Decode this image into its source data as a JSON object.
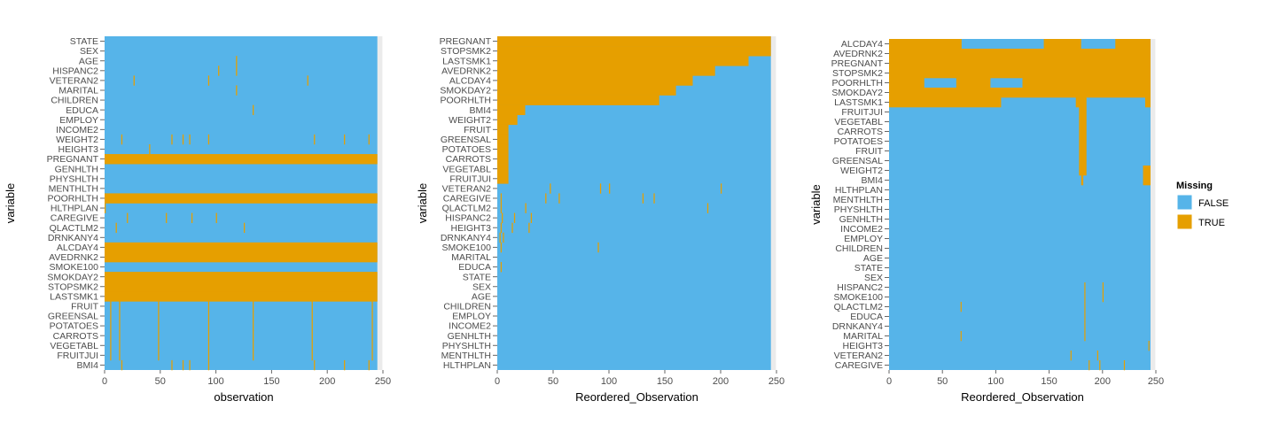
{
  "colors": {
    "missing_false": "#56B4E9",
    "missing_true": "#E69F00",
    "panel_bg": "#EBEBEB",
    "grid": "#ffffff"
  },
  "legend": {
    "title": "Missing",
    "items": [
      {
        "label": "FALSE",
        "color": "#56B4E9"
      },
      {
        "label": "TRUE",
        "color": "#E69F00"
      }
    ]
  },
  "chart_data": [
    {
      "type": "heatmap",
      "xlabel": "observation",
      "ylabel": "variable",
      "xlim": [
        0,
        250
      ],
      "xticks": [
        "0",
        "50",
        "100",
        "150",
        "200",
        "250"
      ],
      "n_obs": 245,
      "variables": [
        "STATE",
        "SEX",
        "AGE",
        "HISPANC2",
        "VETERAN2",
        "MARITAL",
        "CHILDREN",
        "EDUCA",
        "EMPLOY",
        "INCOME2",
        "WEIGHT2",
        "HEIGHT3",
        "PREGNANT",
        "GENHLTH",
        "PHYSHLTH",
        "MENTHLTH",
        "POORHLTH",
        "HLTHPLAN",
        "CAREGIVE",
        "QLACTLM2",
        "DRNKANY4",
        "ALCDAY4",
        "AVEDRNK2",
        "SMOKE100",
        "SMOKDAY2",
        "STOPSMK2",
        "LASTSMK1",
        "FRUIT",
        "GREENSAL",
        "POTATOES",
        "CARROTS",
        "VEGETABL",
        "FRUITJUI",
        "BMI4"
      ],
      "missing": {
        "AGE": [
          [
            118,
            119
          ]
        ],
        "HISPANC2": [
          [
            102,
            103
          ],
          [
            118,
            119
          ]
        ],
        "VETERAN2": [
          [
            26,
            27
          ],
          [
            93,
            94
          ],
          [
            182,
            183
          ]
        ],
        "MARITAL": [
          [
            118,
            119
          ]
        ],
        "EDUCA": [
          [
            133,
            134
          ]
        ],
        "WEIGHT2": [
          [
            15,
            16
          ],
          [
            60,
            61
          ],
          [
            70,
            71
          ],
          [
            76,
            77
          ],
          [
            93,
            94
          ],
          [
            188,
            189
          ],
          [
            215,
            216
          ],
          [
            237,
            238
          ]
        ],
        "HEIGHT3": [
          [
            40,
            41
          ]
        ],
        "PREGNANT": [
          [
            0,
            245
          ]
        ],
        "POORHLTH": [
          [
            0,
            245
          ]
        ],
        "HLTHPLAN": [
          [
            0,
            1
          ]
        ],
        "CAREGIVE": [
          [
            20,
            21
          ],
          [
            55,
            56
          ],
          [
            78,
            79
          ],
          [
            100,
            101
          ]
        ],
        "QLACTLM2": [
          [
            10,
            11
          ],
          [
            125,
            126
          ]
        ],
        "ALCDAY4": [
          [
            0,
            245
          ]
        ],
        "AVEDRNK2": [
          [
            0,
            245
          ]
        ],
        "SMOKDAY2": [
          [
            0,
            245
          ]
        ],
        "STOPSMK2": [
          [
            0,
            245
          ]
        ],
        "LASTSMK1": [
          [
            0,
            245
          ]
        ],
        "FRUIT": [
          [
            5,
            6
          ],
          [
            13,
            14
          ],
          [
            48,
            49
          ],
          [
            93,
            94
          ],
          [
            133,
            134
          ],
          [
            186,
            187
          ],
          [
            240,
            241
          ]
        ],
        "GREENSAL": [
          [
            5,
            6
          ],
          [
            13,
            14
          ],
          [
            48,
            49
          ],
          [
            93,
            94
          ],
          [
            133,
            134
          ],
          [
            186,
            187
          ],
          [
            240,
            241
          ]
        ],
        "POTATOES": [
          [
            5,
            6
          ],
          [
            13,
            14
          ],
          [
            48,
            49
          ],
          [
            93,
            94
          ],
          [
            133,
            134
          ],
          [
            186,
            187
          ],
          [
            240,
            241
          ]
        ],
        "CARROTS": [
          [
            5,
            6
          ],
          [
            13,
            14
          ],
          [
            48,
            49
          ],
          [
            93,
            94
          ],
          [
            133,
            134
          ],
          [
            186,
            187
          ],
          [
            240,
            241
          ]
        ],
        "VEGETABL": [
          [
            5,
            6
          ],
          [
            13,
            14
          ],
          [
            48,
            49
          ],
          [
            93,
            94
          ],
          [
            133,
            134
          ],
          [
            186,
            187
          ],
          [
            240,
            241
          ]
        ],
        "FRUITJUI": [
          [
            5,
            6
          ],
          [
            13,
            14
          ],
          [
            48,
            49
          ],
          [
            93,
            94
          ],
          [
            133,
            134
          ],
          [
            186,
            187
          ],
          [
            240,
            241
          ]
        ],
        "BMI4": [
          [
            15,
            16
          ],
          [
            60,
            61
          ],
          [
            70,
            71
          ],
          [
            76,
            77
          ],
          [
            93,
            94
          ],
          [
            188,
            189
          ],
          [
            215,
            216
          ],
          [
            237,
            238
          ]
        ]
      }
    },
    {
      "type": "heatmap",
      "xlabel": "Reordered_Observation",
      "ylabel": "variable",
      "xlim": [
        0,
        250
      ],
      "xticks": [
        "0",
        "50",
        "100",
        "150",
        "200",
        "250"
      ],
      "n_obs": 245,
      "variables": [
        "PREGNANT",
        "STOPSMK2",
        "LASTSMK1",
        "AVEDRNK2",
        "ALCDAY4",
        "SMOKDAY2",
        "POORHLTH",
        "BMI4",
        "WEIGHT2",
        "FRUIT",
        "GREENSAL",
        "POTATOES",
        "CARROTS",
        "VEGETABL",
        "FRUITJUI",
        "VETERAN2",
        "CAREGIVE",
        "QLACTLM2",
        "HISPANC2",
        "HEIGHT3",
        "DRNKANY4",
        "SMOKE100",
        "MARITAL",
        "EDUCA",
        "STATE",
        "SEX",
        "AGE",
        "CHILDREN",
        "EMPLOY",
        "INCOME2",
        "GENHLTH",
        "PHYSHLTH",
        "MENTHLTH",
        "HLTHPLAN"
      ],
      "missing": {
        "PREGNANT": [
          [
            0,
            245
          ]
        ],
        "STOPSMK2": [
          [
            0,
            245
          ]
        ],
        "LASTSMK1": [
          [
            0,
            225
          ]
        ],
        "AVEDRNK2": [
          [
            0,
            195
          ]
        ],
        "ALCDAY4": [
          [
            0,
            175
          ]
        ],
        "SMOKDAY2": [
          [
            0,
            160
          ]
        ],
        "POORHLTH": [
          [
            0,
            145
          ]
        ],
        "BMI4": [
          [
            0,
            25
          ]
        ],
        "WEIGHT2": [
          [
            0,
            18
          ]
        ],
        "FRUIT": [
          [
            0,
            10
          ]
        ],
        "GREENSAL": [
          [
            0,
            10
          ]
        ],
        "POTATOES": [
          [
            0,
            10
          ]
        ],
        "CARROTS": [
          [
            0,
            10
          ]
        ],
        "VEGETABL": [
          [
            0,
            10
          ]
        ],
        "FRUITJUI": [
          [
            0,
            10
          ]
        ],
        "VETERAN2": [
          [
            47,
            48
          ],
          [
            92,
            93
          ],
          [
            100,
            101
          ],
          [
            200,
            201
          ]
        ],
        "CAREGIVE": [
          [
            3,
            4
          ],
          [
            43,
            44
          ],
          [
            55,
            56
          ],
          [
            130,
            131
          ],
          [
            140,
            141
          ]
        ],
        "QLACTLM2": [
          [
            3,
            4
          ],
          [
            25,
            26
          ],
          [
            188,
            189
          ]
        ],
        "HISPANC2": [
          [
            4,
            5
          ],
          [
            15,
            16
          ],
          [
            30,
            31
          ]
        ],
        "HEIGHT3": [
          [
            3,
            4
          ],
          [
            13,
            14
          ],
          [
            28,
            29
          ]
        ],
        "DRNKANY4": [
          [
            2,
            3
          ],
          [
            5,
            6
          ]
        ],
        "SMOKE100": [
          [
            3,
            4
          ],
          [
            90,
            91
          ]
        ],
        "EDUCA": [
          [
            3,
            4
          ]
        ]
      }
    },
    {
      "type": "heatmap",
      "xlabel": "Reordered_Observation",
      "ylabel": "variable",
      "xlim": [
        0,
        250
      ],
      "xticks": [
        "0",
        "50",
        "100",
        "150",
        "200",
        "250"
      ],
      "n_obs": 245,
      "variables": [
        "ALCDAY4",
        "AVEDRNK2",
        "PREGNANT",
        "STOPSMK2",
        "POORHLTH",
        "SMOKDAY2",
        "LASTSMK1",
        "FRUITJUI",
        "VEGETABL",
        "CARROTS",
        "POTATOES",
        "FRUIT",
        "GREENSAL",
        "WEIGHT2",
        "BMI4",
        "HLTHPLAN",
        "MENTHLTH",
        "PHYSHLTH",
        "GENHLTH",
        "INCOME2",
        "EMPLOY",
        "CHILDREN",
        "AGE",
        "STATE",
        "SEX",
        "HISPANC2",
        "SMOKE100",
        "QLACTLM2",
        "EDUCA",
        "DRNKANY4",
        "MARITAL",
        "HEIGHT3",
        "VETERAN2",
        "CAREGIVE"
      ],
      "missing": {
        "ALCDAY4": [
          [
            0,
            68
          ],
          [
            145,
            180
          ],
          [
            212,
            245
          ]
        ],
        "AVEDRNK2": [
          [
            0,
            245
          ]
        ],
        "PREGNANT": [
          [
            0,
            245
          ]
        ],
        "STOPSMK2": [
          [
            0,
            245
          ]
        ],
        "POORHLTH": [
          [
            0,
            33
          ],
          [
            63,
            95
          ],
          [
            125,
            245
          ]
        ],
        "SMOKDAY2": [
          [
            0,
            245
          ]
        ],
        "LASTSMK1": [
          [
            0,
            105
          ],
          [
            175,
            185
          ],
          [
            240,
            245
          ]
        ],
        "FRUITJUI": [
          [
            178,
            185
          ]
        ],
        "VEGETABL": [
          [
            178,
            185
          ]
        ],
        "CARROTS": [
          [
            178,
            185
          ]
        ],
        "POTATOES": [
          [
            178,
            185
          ]
        ],
        "FRUIT": [
          [
            178,
            185
          ]
        ],
        "GREENSAL": [
          [
            178,
            185
          ]
        ],
        "WEIGHT2": [
          [
            178,
            185
          ],
          [
            238,
            245
          ]
        ],
        "BMI4": [
          [
            180,
            182
          ],
          [
            238,
            245
          ]
        ],
        "HISPANC2": [
          [
            183,
            184
          ],
          [
            200,
            201
          ]
        ],
        "SMOKE100": [
          [
            183,
            184
          ],
          [
            200,
            201
          ]
        ],
        "QLACTLM2": [
          [
            67,
            68
          ],
          [
            183,
            184
          ]
        ],
        "EDUCA": [
          [
            183,
            184
          ]
        ],
        "DRNKANY4": [
          [
            183,
            184
          ]
        ],
        "MARITAL": [
          [
            67,
            68
          ],
          [
            183,
            184
          ]
        ],
        "HEIGHT3": [
          [
            243,
            244
          ]
        ],
        "VETERAN2": [
          [
            170,
            171
          ],
          [
            195,
            196
          ]
        ],
        "CAREGIVE": [
          [
            187,
            188
          ],
          [
            197,
            198
          ],
          [
            220,
            221
          ]
        ]
      }
    }
  ]
}
